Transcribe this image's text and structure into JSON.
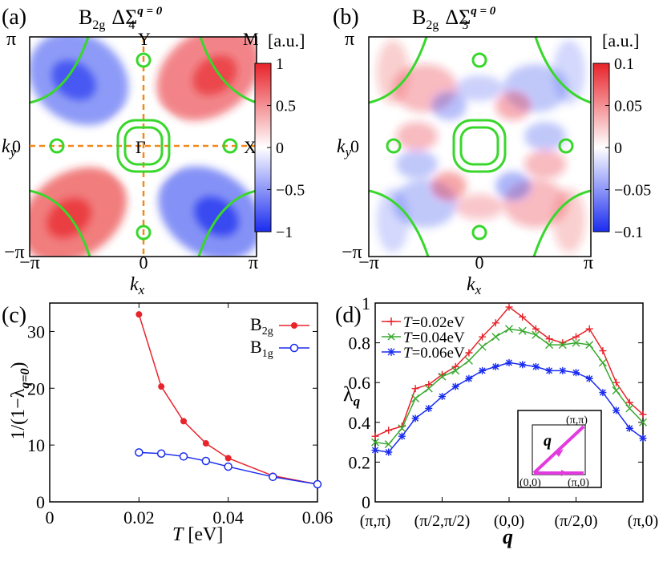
{
  "chart_data": [
    {
      "panel": "(a)",
      "type": "heatmap",
      "title_main": "B",
      "title_sub": "2g",
      "title_delta": "ΔΣ",
      "title_sup": "q = 0",
      "title_index": "4",
      "xlabel_main": "k",
      "xlabel_sub": "x",
      "ylabel_main": "k",
      "ylabel_sub": "y",
      "x_ticks": [
        "−π",
        "0",
        "π"
      ],
      "y_ticks": [
        "π",
        "0",
        "−π"
      ],
      "point_labels": {
        "gamma": "Γ",
        "x": "X",
        "y": "Y",
        "m": "M"
      },
      "colorbar_unit": "[a.u.]",
      "colorbar_ticks": [
        "1",
        "0.5",
        "0",
        "−0.5",
        "−1"
      ],
      "colorbar_values": [
        1,
        0.5,
        0,
        -0.5,
        -1
      ],
      "zlim": [
        -1,
        1
      ],
      "colors": {
        "positive": "#e8232a",
        "negative": "#1a2cef",
        "zero": "#ffffff",
        "fermi_surface": "#39d72c",
        "path": "#f2891b"
      }
    },
    {
      "panel": "(b)",
      "type": "heatmap",
      "title_main": "B",
      "title_sub": "2g",
      "title_delta": "ΔΣ",
      "title_sup": "q = 0",
      "title_index": "3",
      "xlabel_main": "k",
      "xlabel_sub": "x",
      "ylabel_main": "k",
      "ylabel_sub": "y",
      "x_ticks": [
        "−π",
        "0",
        "π"
      ],
      "y_ticks": [
        "π",
        "0",
        "−π"
      ],
      "colorbar_unit": "[a.u.]",
      "colorbar_ticks": [
        "0.1",
        "0.05",
        "0",
        "−0.05",
        "−0.1"
      ],
      "colorbar_values": [
        0.1,
        0.05,
        0,
        -0.05,
        -0.1
      ],
      "zlim": [
        -0.1,
        0.1
      ]
    },
    {
      "panel": "(c)",
      "type": "line",
      "xlabel": "T [eV]",
      "xlabel_italic": "T",
      "xlabel_unit": " [eV]",
      "ylabel": "1/(1−λq=0)",
      "ylabel_pre": "1/(1−λ",
      "ylabel_sub": "q=0",
      "ylabel_post": ")",
      "xlim": [
        0,
        0.06
      ],
      "ylim": [
        0,
        35
      ],
      "x_ticks": [
        0,
        0.02,
        0.04,
        0.06
      ],
      "x_tick_labels": [
        "0",
        "0.02",
        "0.04",
        "0.06"
      ],
      "y_ticks": [
        0,
        10,
        20,
        30
      ],
      "y_tick_labels": [
        "0",
        "10",
        "20",
        "30"
      ],
      "series": [
        {
          "name": "B2g",
          "name_main": "B",
          "name_sub": "2g",
          "color": "#e8232a",
          "marker": "filled-circle",
          "x": [
            0.02,
            0.025,
            0.03,
            0.035,
            0.04,
            0.05,
            0.06
          ],
          "y": [
            33.0,
            20.3,
            14.2,
            10.3,
            7.7,
            4.6,
            3.1
          ]
        },
        {
          "name": "B1g",
          "name_main": "B",
          "name_sub": "1g",
          "color": "#1a2cef",
          "marker": "open-circle",
          "x": [
            0.02,
            0.025,
            0.03,
            0.035,
            0.04,
            0.05,
            0.06
          ],
          "y": [
            8.7,
            8.5,
            8.0,
            7.2,
            6.2,
            4.4,
            3.1
          ]
        }
      ]
    },
    {
      "panel": "(d)",
      "type": "line",
      "xlabel": "q",
      "ylabel_main": "λ",
      "ylabel_sub": "q",
      "ylim": [
        0,
        1
      ],
      "y_ticks": [
        0,
        0.2,
        0.4,
        0.6,
        0.8,
        1
      ],
      "y_tick_labels": [
        "0",
        "0.2",
        "0.4",
        "0.6",
        "0.8",
        "1"
      ],
      "x_ticks": [
        0,
        5,
        10,
        15,
        20
      ],
      "x_tick_labels": [
        "(π,π)",
        "(π/2,π/2)",
        "(0,0)",
        "(π/2,0)",
        "(π,0)"
      ],
      "x_range": [
        0,
        20
      ],
      "series": [
        {
          "name": "T=0.02eV",
          "name_italic": "T",
          "name_rest": "=0.02eV",
          "color": "#e8232a",
          "marker": "plus",
          "x": [
            0,
            1,
            2,
            3,
            4,
            5,
            6,
            7,
            8,
            9,
            10,
            11,
            12,
            13,
            14,
            15,
            16,
            17,
            18,
            19,
            20
          ],
          "y": [
            0.33,
            0.36,
            0.38,
            0.57,
            0.59,
            0.64,
            0.68,
            0.75,
            0.83,
            0.9,
            0.98,
            0.93,
            0.87,
            0.82,
            0.8,
            0.83,
            0.87,
            0.76,
            0.6,
            0.5,
            0.44
          ]
        },
        {
          "name": "T=0.04eV",
          "name_italic": "T",
          "name_rest": "=0.04eV",
          "color": "#39a92f",
          "marker": "cross",
          "x": [
            0,
            1,
            2,
            3,
            4,
            5,
            6,
            7,
            8,
            9,
            10,
            11,
            12,
            13,
            14,
            15,
            16,
            17,
            18,
            19,
            20
          ],
          "y": [
            0.3,
            0.29,
            0.37,
            0.52,
            0.57,
            0.63,
            0.66,
            0.71,
            0.78,
            0.83,
            0.87,
            0.86,
            0.84,
            0.79,
            0.79,
            0.8,
            0.79,
            0.7,
            0.56,
            0.47,
            0.4
          ]
        },
        {
          "name": "T=0.06eV",
          "name_italic": "T",
          "name_rest": "=0.06eV",
          "color": "#1a2cef",
          "marker": "asterisk",
          "x": [
            0,
            1,
            2,
            3,
            4,
            5,
            6,
            7,
            8,
            9,
            10,
            11,
            12,
            13,
            14,
            15,
            16,
            17,
            18,
            19,
            20
          ],
          "y": [
            0.26,
            0.25,
            0.33,
            0.42,
            0.47,
            0.53,
            0.58,
            0.62,
            0.66,
            0.68,
            0.7,
            0.69,
            0.68,
            0.66,
            0.66,
            0.65,
            0.62,
            0.55,
            0.46,
            0.37,
            0.32
          ]
        }
      ],
      "inset_labels": {
        "pipi": "(π,π)",
        "zz": "(0,0)",
        "pi0": "(π,0)",
        "q": "q"
      },
      "inset_color": "#e23adf"
    }
  ],
  "panel_labels": [
    "(a)",
    "(b)",
    "(c)",
    "(d)"
  ]
}
